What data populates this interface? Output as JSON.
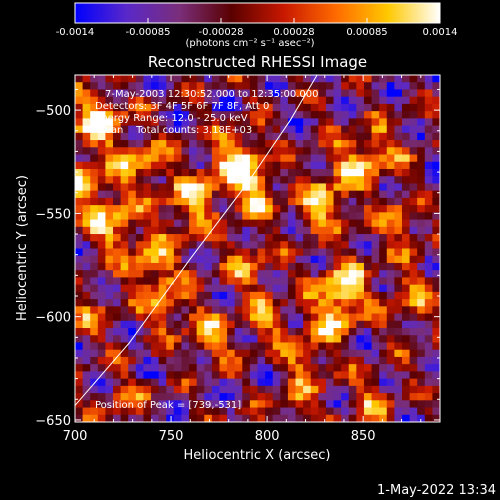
{
  "colorbar": {
    "tick_labels": [
      "-0.0014",
      "-0.00085",
      "-0.00028",
      "0.00028",
      "0.00085",
      "0.0014"
    ],
    "title": "(photons cm⁻² s⁻¹ asec⁻²)",
    "colors": [
      "#0000ff",
      "#5a28c8",
      "#7a2e7a",
      "#5a0000",
      "#c81800",
      "#ff6a00",
      "#ffc800",
      "#ffffff"
    ]
  },
  "timestamp": "1-May-2022 13:34",
  "chart_data": {
    "type": "heatmap",
    "title": "Reconstructed RHESSI Image",
    "xlabel": "Heliocentric X (arcsec)",
    "ylabel": "Heliocentric Y (arcsec)",
    "xlim": [
      700,
      890
    ],
    "ylim": [
      -651,
      -483
    ],
    "x_ticks": [
      700,
      750,
      800,
      850
    ],
    "y_ticks": [
      -500,
      -550,
      -600,
      -650
    ],
    "x_tick_labels": [
      "700",
      "750",
      "800",
      "850"
    ],
    "y_tick_labels": [
      "−500",
      "−550",
      "−600",
      "−650"
    ],
    "color_range": [
      -0.0014,
      0.0014
    ],
    "annotations": [
      "7-May-2003 12:30:52.000 to 12:35:00.000",
      "Detectors: 3F 4F 5F 6F 7F 8F, Att 0",
      "Energy Range: 12.0 - 25.0 keV",
      "Clean    Total counts: 3.18E+03"
    ],
    "peak_text": "Position of Peak = [739,-531]",
    "bright_sources": [
      {
        "x": 712,
        "y": -505,
        "v": 1.0
      },
      {
        "x": 705,
        "y": -535,
        "v": 0.85
      },
      {
        "x": 720,
        "y": -555,
        "v": 0.8
      },
      {
        "x": 735,
        "y": -525,
        "v": 0.7
      },
      {
        "x": 740,
        "y": -575,
        "v": 0.75
      },
      {
        "x": 748,
        "y": -595,
        "v": 0.55
      },
      {
        "x": 755,
        "y": -550,
        "v": 0.5
      },
      {
        "x": 765,
        "y": -540,
        "v": 0.6
      },
      {
        "x": 785,
        "y": -525,
        "v": 0.95
      },
      {
        "x": 795,
        "y": -540,
        "v": 0.65
      },
      {
        "x": 790,
        "y": -575,
        "v": 0.55
      },
      {
        "x": 800,
        "y": -600,
        "v": 0.5
      },
      {
        "x": 770,
        "y": -610,
        "v": 0.6
      },
      {
        "x": 820,
        "y": -620,
        "v": 0.55
      },
      {
        "x": 835,
        "y": -600,
        "v": 0.65
      },
      {
        "x": 840,
        "y": -585,
        "v": 0.9
      },
      {
        "x": 830,
        "y": -545,
        "v": 0.85
      },
      {
        "x": 845,
        "y": -525,
        "v": 0.6
      },
      {
        "x": 860,
        "y": -520,
        "v": 0.55
      },
      {
        "x": 870,
        "y": -555,
        "v": 0.6
      },
      {
        "x": 875,
        "y": -590,
        "v": 0.55
      },
      {
        "x": 855,
        "y": -640,
        "v": 0.5
      },
      {
        "x": 815,
        "y": -645,
        "v": 0.45
      },
      {
        "x": 725,
        "y": -640,
        "v": 0.4
      },
      {
        "x": 705,
        "y": -600,
        "v": 0.35
      }
    ],
    "limb_arc": [
      [
        700,
        -643
      ],
      [
        728,
        -613
      ],
      [
        760,
        -572
      ],
      [
        790,
        -535
      ],
      [
        812,
        -505
      ],
      [
        826,
        -483
      ]
    ]
  }
}
